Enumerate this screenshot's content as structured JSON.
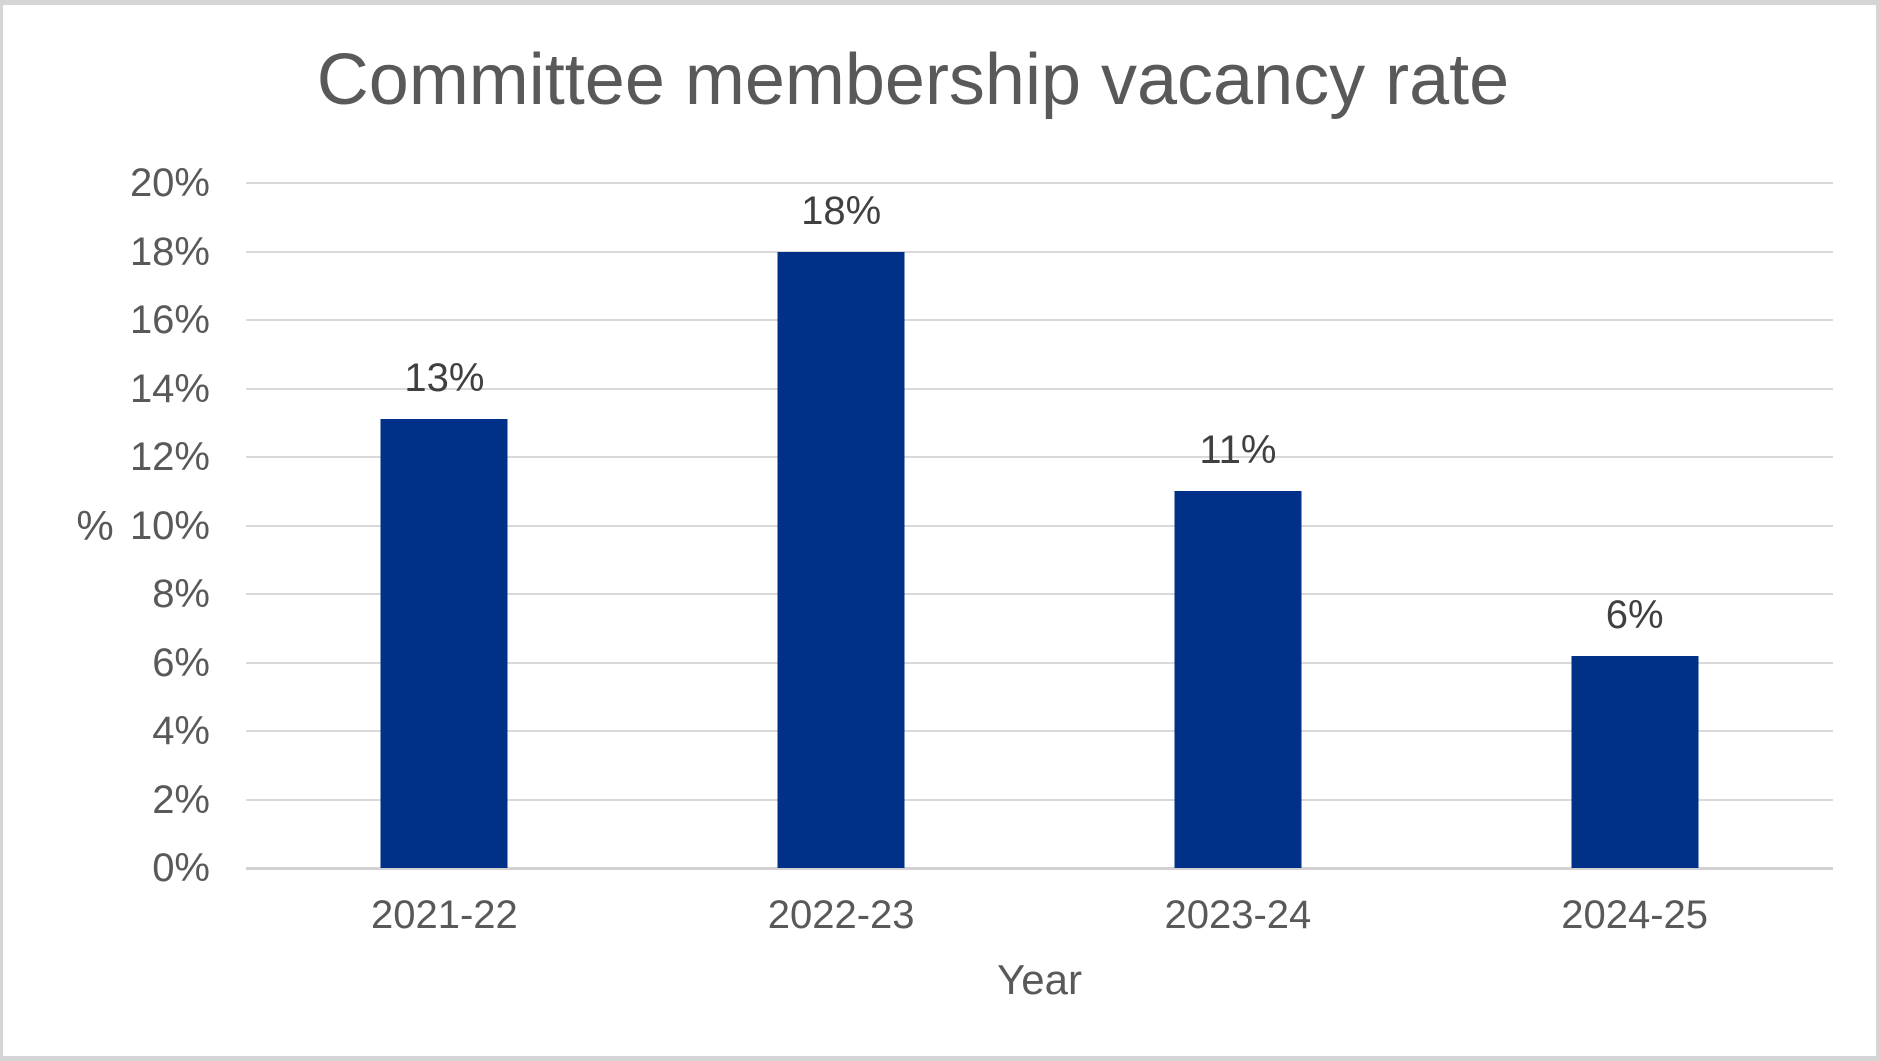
{
  "chart_data": {
    "type": "bar",
    "title": "Committee membership vacancy rate",
    "categories": [
      "2021-22",
      "2022-23",
      "2023-24",
      "2024-25"
    ],
    "values": [
      13.1,
      18.0,
      11.0,
      6.2
    ],
    "data_labels": [
      "13%",
      "18%",
      "11%",
      "6%"
    ],
    "xlabel": "Year",
    "ylabel": "%",
    "ylim": [
      0,
      20
    ],
    "ytick_step": 2,
    "ytick_suffix": "%",
    "grid": "horizontal",
    "legend": "none",
    "colors": {
      "bar": "#003087",
      "gridline": "#d9d9d9",
      "axis_line": "#d2d2d2",
      "axis_text": "#595959",
      "title_text": "#595959",
      "data_label_text": "#404040",
      "frame_border": "#d5d5d5"
    }
  }
}
